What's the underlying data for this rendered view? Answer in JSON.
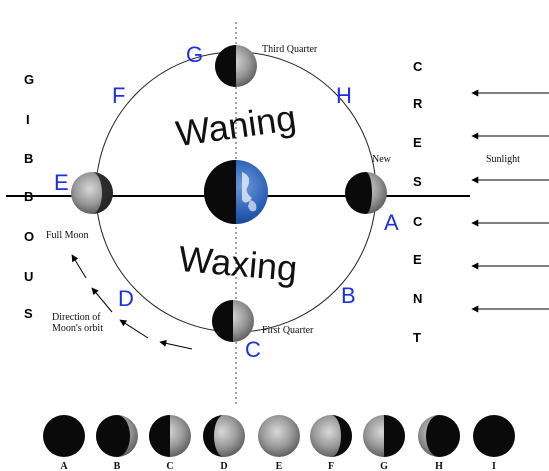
{
  "labels": {
    "third_quarter": "Third Quarter",
    "first_quarter": "First Quarter",
    "full_moon": "Full Moon",
    "new": "New",
    "sunlight": "Sunlight",
    "waning": "Waning",
    "waxing": "Waxing",
    "direction_line1": "Direction of",
    "direction_line2": "Moon's orbit"
  },
  "orbit_letters": {
    "A": "A",
    "B": "B",
    "C": "C",
    "D": "D",
    "E": "E",
    "F": "F",
    "G": "G",
    "H": "H"
  },
  "gibbous": [
    "G",
    "I",
    "B",
    "B",
    "O",
    "U",
    "S"
  ],
  "crescent": [
    "C",
    "R",
    "E",
    "S",
    "C",
    "E",
    "N",
    "T"
  ],
  "phase_labels": [
    "A",
    "B",
    "C",
    "D",
    "E",
    "F",
    "G",
    "H",
    "I"
  ],
  "colors": {
    "letter_blue": "#1f2fe0",
    "moon_dark": "#0a0a0a",
    "earth_blue": "#2a5fb8"
  }
}
